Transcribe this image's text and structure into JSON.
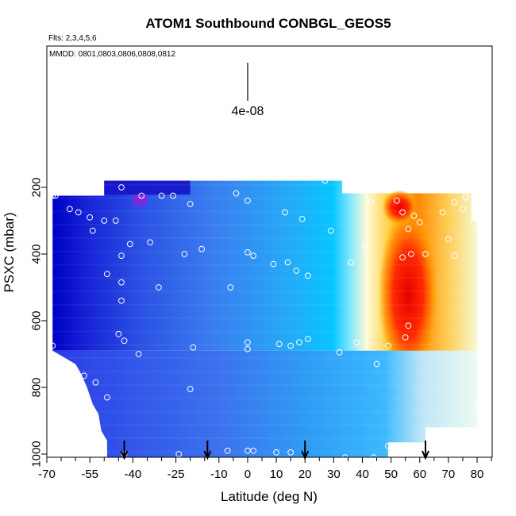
{
  "chart_data": {
    "type": "heatmap",
    "title": "ATOM1 Southbound CONBGL_GEOS5",
    "flights_label": "Flts: 2,3,4,5,6",
    "dates_label": "MMDD: 0801,0803,0806,0808,0812",
    "scale_label": "4e-08",
    "xlabel": "Latitude (deg N)",
    "ylabel": "PSXC (mbar)",
    "xlim": [
      -70,
      85
    ],
    "ylim": [
      1000,
      0
    ],
    "x_tick_labels": [
      "-70",
      "-55",
      "-40",
      "-25",
      "-10",
      "0",
      "10",
      "20",
      "30",
      "40",
      "50",
      "60",
      "70",
      "80"
    ],
    "x_tick_values": [
      -70,
      -55,
      -40,
      -25,
      -10,
      0,
      10,
      20,
      30,
      40,
      50,
      60,
      70,
      80
    ],
    "y_tick_labels": [
      "200",
      "400",
      "600",
      "800",
      "1000"
    ],
    "y_tick_values": [
      200,
      400,
      600,
      800,
      1000
    ],
    "grid": false,
    "arrow_latitudes": [
      -43,
      -14,
      20,
      62
    ],
    "colors": {
      "frame": "#000000",
      "point_outline": "#ffffff",
      "low": "#0000cc",
      "mid": "#00bfff",
      "high": "#ffa500",
      "peak": "#ff0000"
    },
    "field_columns": [
      {
        "x0": -68,
        "x1": -55,
        "p0": 180,
        "p1": 1000
      },
      {
        "x0": -55,
        "x1": 33,
        "p0": 180,
        "p1": 1000
      },
      {
        "x0": 33,
        "x1": 80,
        "p0": 220,
        "p1": 1000
      }
    ],
    "observations": [
      {
        "x": -67,
        "p": 225
      },
      {
        "x": -68,
        "p": 225
      },
      {
        "x": -62,
        "p": 265
      },
      {
        "x": -59,
        "p": 275
      },
      {
        "x": -55,
        "p": 290
      },
      {
        "x": -50,
        "p": 300
      },
      {
        "x": -46,
        "p": 300
      },
      {
        "x": -44,
        "p": 200
      },
      {
        "x": -37,
        "p": 225
      },
      {
        "x": -30,
        "p": 225
      },
      {
        "x": -26,
        "p": 225
      },
      {
        "x": -20,
        "p": 250
      },
      {
        "x": -4,
        "p": 218
      },
      {
        "x": 0,
        "p": 240
      },
      {
        "x": 13,
        "p": 275
      },
      {
        "x": 19,
        "p": 295
      },
      {
        "x": 27,
        "p": 180
      },
      {
        "x": 29,
        "p": 330
      },
      {
        "x": 43,
        "p": 245
      },
      {
        "x": -54,
        "p": 330
      },
      {
        "x": -41,
        "p": 370
      },
      {
        "x": -34,
        "p": 365
      },
      {
        "x": -22,
        "p": 400
      },
      {
        "x": -16,
        "p": 385
      },
      {
        "x": -44,
        "p": 405
      },
      {
        "x": 0,
        "p": 395
      },
      {
        "x": 2,
        "p": 405
      },
      {
        "x": 9,
        "p": 430
      },
      {
        "x": 14,
        "p": 425
      },
      {
        "x": 17,
        "p": 450
      },
      {
        "x": 21,
        "p": 465
      },
      {
        "x": 36,
        "p": 425
      },
      {
        "x": 41,
        "p": 375
      },
      {
        "x": -49,
        "p": 460
      },
      {
        "x": -44,
        "p": 485
      },
      {
        "x": -31,
        "p": 500
      },
      {
        "x": -6,
        "p": 500
      },
      {
        "x": -44,
        "p": 540
      },
      {
        "x": -45,
        "p": 640
      },
      {
        "x": -43,
        "p": 660
      },
      {
        "x": -38,
        "p": 700
      },
      {
        "x": -19,
        "p": 680
      },
      {
        "x": 0,
        "p": 665
      },
      {
        "x": 0,
        "p": 685
      },
      {
        "x": 11,
        "p": 670
      },
      {
        "x": 15,
        "p": 675
      },
      {
        "x": 18,
        "p": 665
      },
      {
        "x": 21,
        "p": 655
      },
      {
        "x": 32,
        "p": 695
      },
      {
        "x": 38,
        "p": 665
      },
      {
        "x": 45,
        "p": 730
      },
      {
        "x": 49,
        "p": 675
      },
      {
        "x": -68,
        "p": 675
      },
      {
        "x": -57,
        "p": 765
      },
      {
        "x": -53,
        "p": 785
      },
      {
        "x": -49,
        "p": 830
      },
      {
        "x": -20,
        "p": 805
      },
      {
        "x": 52,
        "p": 240
      },
      {
        "x": 58,
        "p": 285
      },
      {
        "x": 60,
        "p": 305
      },
      {
        "x": 54,
        "p": 275
      },
      {
        "x": 56,
        "p": 325
      },
      {
        "x": 62,
        "p": 400
      },
      {
        "x": 54,
        "p": 410
      },
      {
        "x": 57,
        "p": 400
      },
      {
        "x": 68,
        "p": 275
      },
      {
        "x": 75,
        "p": 265
      },
      {
        "x": 72,
        "p": 245
      },
      {
        "x": 76,
        "p": 230
      },
      {
        "x": 70,
        "p": 355
      },
      {
        "x": 56,
        "p": 615
      },
      {
        "x": 55,
        "p": 650
      },
      {
        "x": 72,
        "p": 405
      },
      {
        "x": 80,
        "p": 850
      },
      {
        "x": -54,
        "p": 990
      },
      {
        "x": -50,
        "p": 995
      },
      {
        "x": -43,
        "p": 1000
      },
      {
        "x": -24,
        "p": 1000
      },
      {
        "x": -7,
        "p": 990
      },
      {
        "x": 0,
        "p": 990
      },
      {
        "x": 2,
        "p": 990
      },
      {
        "x": 10,
        "p": 995
      },
      {
        "x": 15,
        "p": 995
      },
      {
        "x": 34,
        "p": 1010
      },
      {
        "x": 44,
        "p": 1010
      },
      {
        "x": 49,
        "p": 975
      }
    ]
  }
}
